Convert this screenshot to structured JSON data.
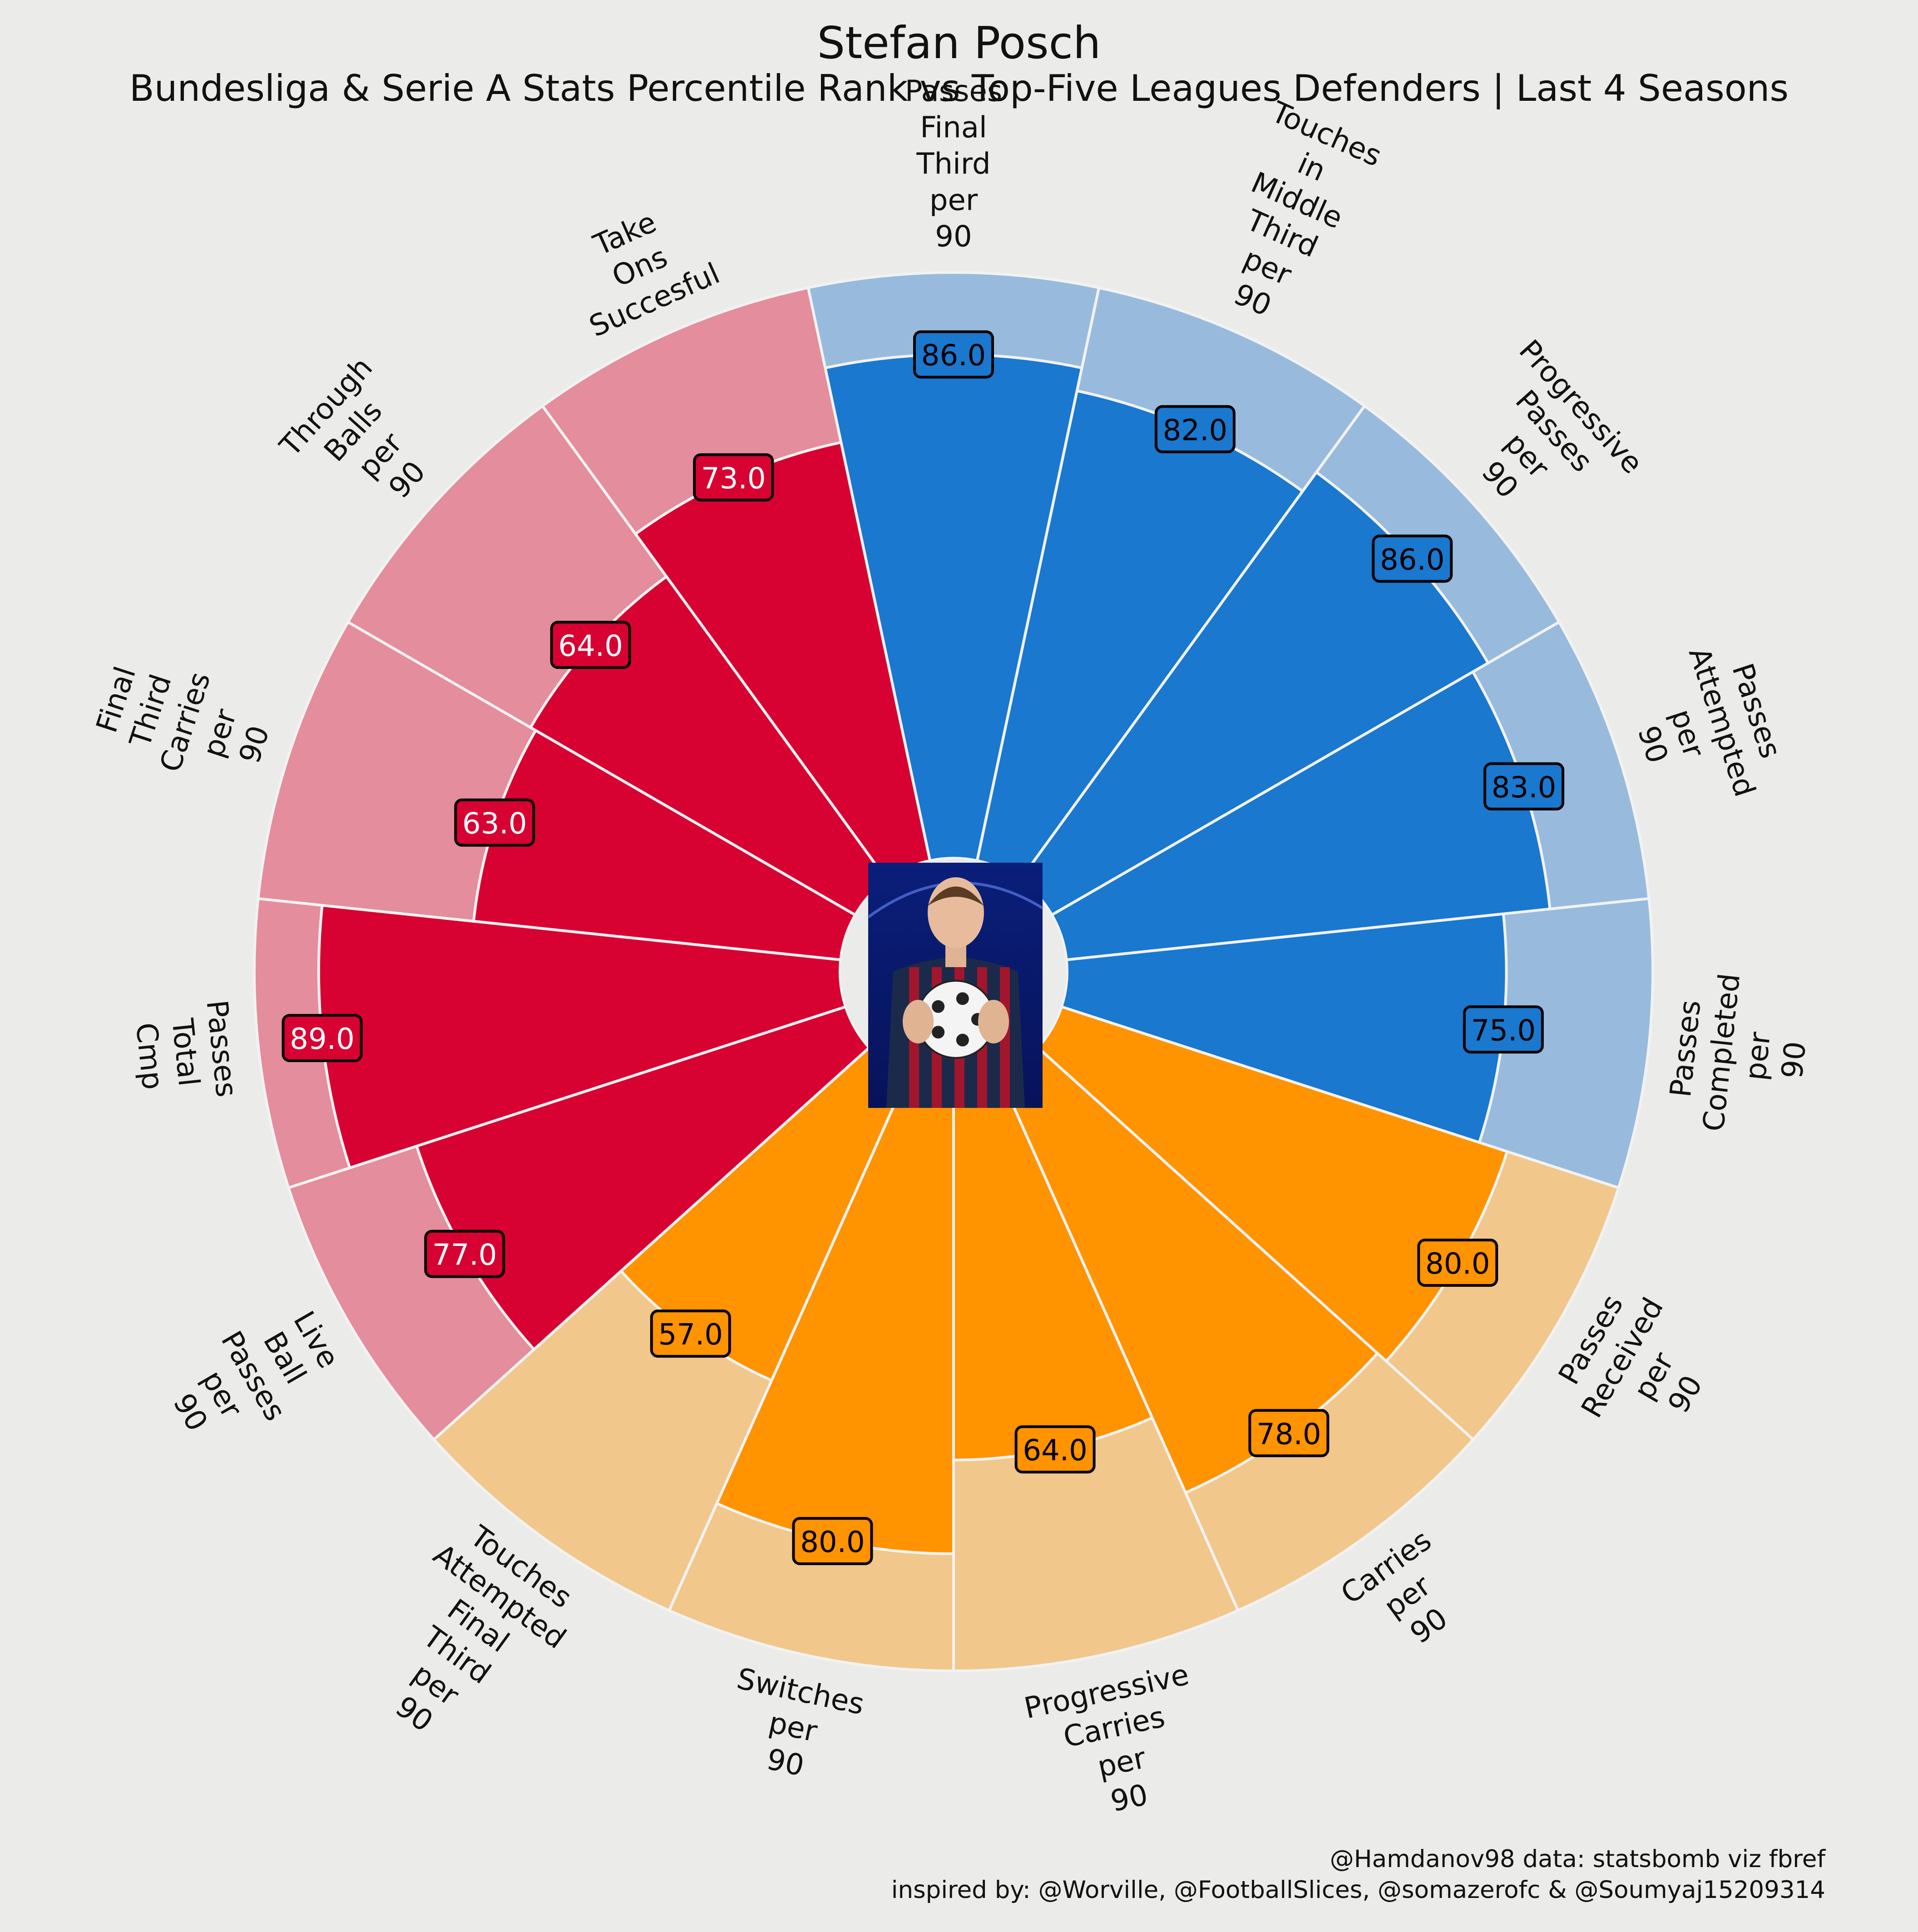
{
  "title": "Stefan Posch",
  "subtitle": "Bundesliga & Serie A Stats Percentile Rank vs Top-Five Leagues Defenders | Last 4 Seasons",
  "credits": {
    "line1": "@Hamdanov98 data: statsbomb viz fbref",
    "line2": "inspired by: @Worville, @FootballSlices, @somazerofc & @Soumyaj15209314"
  },
  "colors": {
    "background": "#ebebe9",
    "blue": "#1a78cf",
    "blue_light": "#98bbdd",
    "red": "#d70232",
    "red_light": "#e48d9c",
    "orange": "#ff9300",
    "orange_light": "#f1c78c",
    "separator": "#f2f2f2"
  },
  "player_image": {
    "description": "player photo",
    "shirt_colors": [
      "#1b2a4a",
      "#b0142a"
    ]
  },
  "chart_data": {
    "type": "pizza",
    "range": [
      0,
      100
    ],
    "direction": "clockwise",
    "categories": [
      "Passes Final Third per 90",
      "Touches in Middle Third per 90",
      "Progressive Passes per 90",
      "Passes Attempted per 90",
      "Passes Completed per 90",
      "Passes Received per 90",
      "Carries per 90",
      "Progressive Carries per 90",
      "Switches per 90",
      "Touches Attempted Final Third per 90",
      "Live Ball Passes per 90",
      "Passes Total Cmp",
      "Final Third Carries per 90",
      "Through Balls per 90",
      "Take Ons Succesful"
    ],
    "values": [
      86.0,
      82.0,
      86.0,
      83.0,
      75.0,
      80.0,
      78.0,
      64.0,
      80.0,
      57.0,
      77.0,
      89.0,
      63.0,
      64.0,
      73.0
    ],
    "value_labels": [
      "86.0",
      "82.0",
      "86.0",
      "83.0",
      "75.0",
      "80.0",
      "78.0",
      "64.0",
      "80.0",
      "57.0",
      "77.0",
      "89.0",
      "63.0",
      "64.0",
      "73.0"
    ],
    "label_lines": [
      [
        "Passes",
        "Final",
        "Third",
        "per",
        "90"
      ],
      [
        "Touches",
        "in",
        "Middle",
        "Third",
        "per",
        "90"
      ],
      [
        "Progressive",
        "Passes",
        "per",
        "90"
      ],
      [
        "Passes",
        "Attempted",
        "per",
        "90"
      ],
      [
        "Passes",
        "Completed",
        "per",
        "90"
      ],
      [
        "Passes",
        "Received",
        "per",
        "90"
      ],
      [
        "Carries",
        "per",
        "90"
      ],
      [
        "Progressive",
        "Carries",
        "per",
        "90"
      ],
      [
        "Switches",
        "per",
        "90"
      ],
      [
        "Touches",
        "Attempted",
        "Final",
        "Third",
        "per",
        "90"
      ],
      [
        "Live",
        "Ball",
        "Passes",
        "per",
        "90"
      ],
      [
        "Passes",
        "Total",
        "Cmp"
      ],
      [
        "Final",
        "Third",
        "Carries",
        "per",
        "90"
      ],
      [
        "Through",
        "Balls",
        "per",
        "90"
      ],
      [
        "Take",
        "Ons",
        "Succesful"
      ]
    ],
    "groups": [
      "blue",
      "blue",
      "blue",
      "blue",
      "blue",
      "orange",
      "orange",
      "orange",
      "orange",
      "orange",
      "red",
      "red",
      "red",
      "red",
      "red"
    ],
    "label_text_colors": {
      "blue": "#000000",
      "orange": "#000000",
      "red": "#ffffff"
    }
  }
}
